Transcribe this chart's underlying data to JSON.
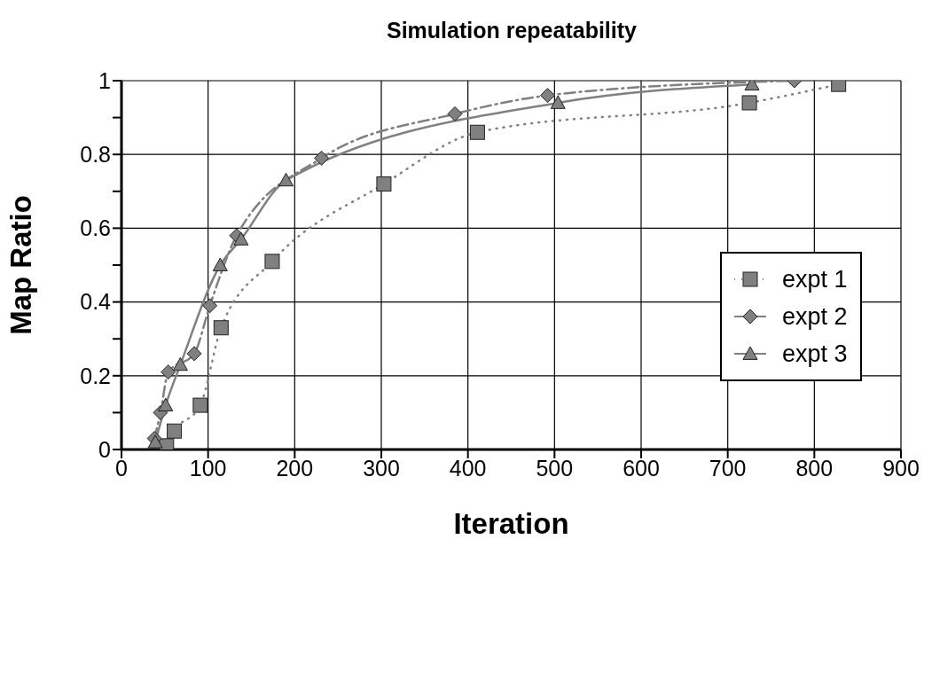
{
  "chart_data": {
    "type": "line",
    "title": "Simulation repeatability",
    "xlabel": "Iteration",
    "ylabel": "Map Ratio",
    "xlim": [
      0,
      900
    ],
    "xticks": [
      0,
      100,
      200,
      300,
      400,
      500,
      600,
      700,
      800,
      900
    ],
    "ylim": [
      0,
      1
    ],
    "yticks": [
      0,
      {
        "value": 0.1,
        "label": null
      },
      0.2,
      {
        "value": 0.3,
        "label": null
      },
      0.4,
      {
        "value": 0.5,
        "label": null
      },
      0.6,
      {
        "value": 0.7,
        "label": null
      },
      0.8,
      {
        "value": 0.9,
        "label": null
      },
      1
    ],
    "grid": true,
    "legend": "right",
    "series": [
      {
        "name": "expt 1",
        "color": "#808080",
        "marker": "square",
        "line_style": "dotted",
        "x": [
          52,
          61,
          91,
          115,
          174,
          303,
          411,
          725,
          828
        ],
        "values": [
          0.01,
          0.05,
          0.12,
          0.33,
          0.51,
          0.72,
          0.86,
          0.94,
          0.99
        ]
      },
      {
        "name": "expt 2",
        "color": "#808080",
        "marker": "diamond",
        "line_style": "dashed",
        "x": [
          38,
          45,
          54,
          84,
          102,
          133,
          231,
          385,
          492,
          777
        ],
        "values": [
          0.03,
          0.1,
          0.21,
          0.26,
          0.39,
          0.58,
          0.79,
          0.91,
          0.96,
          1.0
        ]
      },
      {
        "name": "expt 3",
        "color": "#808080",
        "marker": "triangle",
        "line_style": "solid",
        "x": [
          39,
          51,
          68,
          114,
          138,
          190,
          504,
          728
        ],
        "values": [
          0.02,
          0.12,
          0.23,
          0.5,
          0.57,
          0.73,
          0.94,
          0.99
        ]
      }
    ]
  }
}
